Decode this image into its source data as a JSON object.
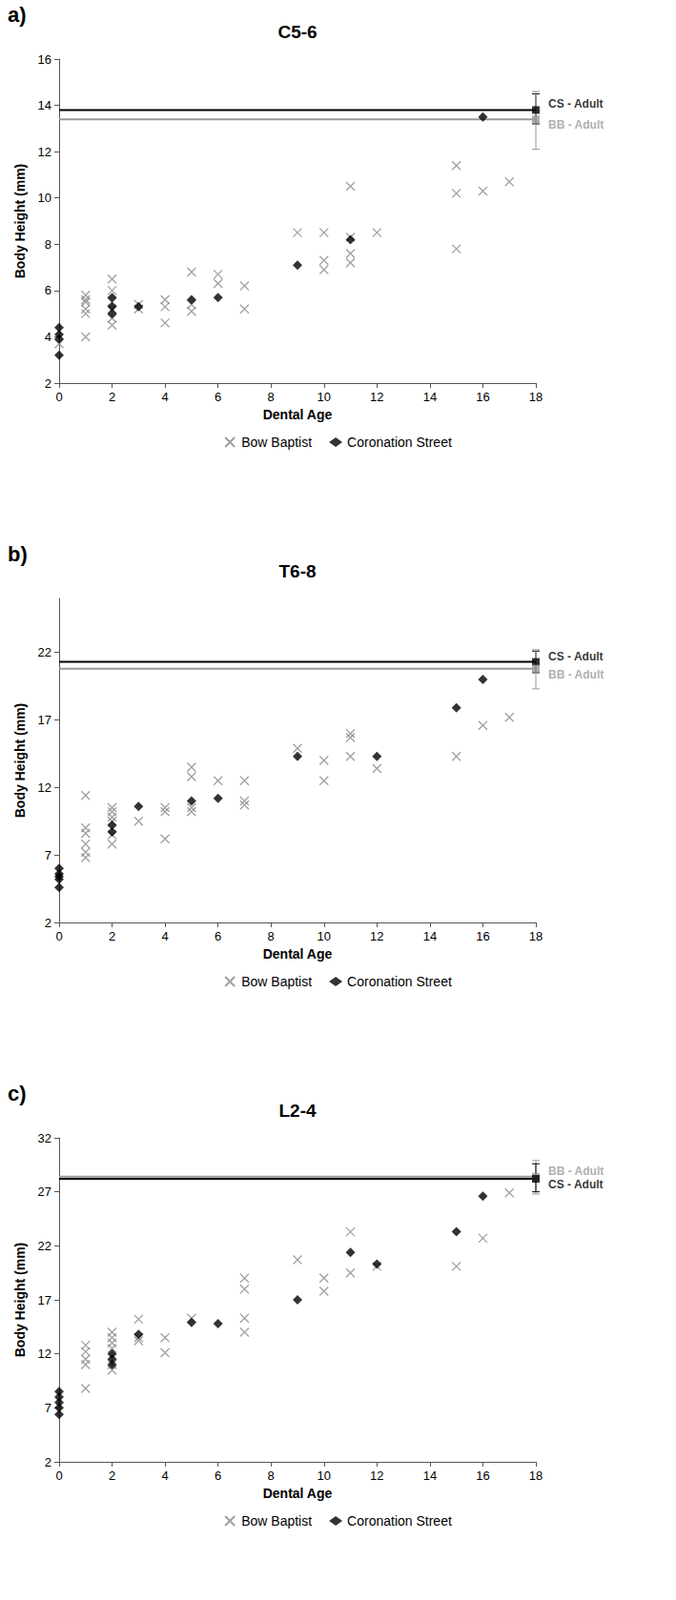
{
  "chart_data": [
    {
      "type": "scatter",
      "panel_label": "a)",
      "title": "C5-6",
      "x_label": "Dental Age",
      "y_label": "Body Height (mm)",
      "xlim": [
        0,
        18
      ],
      "xticks": [
        0,
        2,
        4,
        6,
        8,
        10,
        12,
        14,
        16,
        18
      ],
      "ylim": [
        2,
        16
      ],
      "yticks": [
        2,
        4,
        6,
        8,
        10,
        12,
        14,
        16
      ],
      "grid": false,
      "legend": "bottom",
      "series": [
        {
          "name": "Bow Baptist",
          "color": "#888888",
          "marker": "x",
          "x": [
            0,
            1,
            1,
            1,
            1,
            1,
            1,
            2,
            2,
            2,
            2,
            2,
            2,
            3,
            3,
            4,
            4,
            4,
            5,
            5,
            5,
            6,
            6,
            7,
            7,
            9,
            10,
            10,
            10,
            11,
            11,
            11,
            11,
            12,
            15,
            15,
            15,
            16,
            17
          ],
          "values": [
            3.7,
            5.8,
            5.5,
            5.2,
            5.0,
            4.0,
            5.6,
            6.5,
            6.0,
            5.2,
            4.8,
            4.5,
            5.5,
            5.4,
            5.2,
            5.6,
            5.3,
            4.6,
            6.8,
            5.4,
            5.1,
            6.7,
            6.3,
            6.2,
            5.2,
            8.5,
            8.5,
            7.3,
            6.9,
            10.5,
            8.3,
            7.6,
            7.2,
            8.5,
            11.4,
            10.2,
            7.8,
            10.3,
            10.7
          ]
        },
        {
          "name": "Coronation Street",
          "color": "#000000",
          "marker": "diamond",
          "x": [
            0,
            0,
            0,
            0,
            2,
            2,
            2,
            3,
            5,
            6,
            9,
            11,
            16
          ],
          "values": [
            4.4,
            4.1,
            3.9,
            3.2,
            5.7,
            5.3,
            5.0,
            5.3,
            5.6,
            5.7,
            7.1,
            8.2,
            13.5
          ]
        }
      ],
      "reference_lines": [
        {
          "label": "CS - Adult",
          "value": 13.8,
          "error_low": 13.2,
          "error_high": 14.5,
          "color": "#000000"
        },
        {
          "label": "BB - Adult",
          "value": 13.4,
          "error_low": 12.1,
          "error_high": 14.6,
          "color": "#999999"
        }
      ]
    },
    {
      "type": "scatter",
      "panel_label": "b)",
      "title": "T6-8",
      "x_label": "Dental Age",
      "y_label": "Body Height (mm)",
      "xlim": [
        0,
        18
      ],
      "xticks": [
        0,
        2,
        4,
        6,
        8,
        10,
        12,
        14,
        16,
        18
      ],
      "ylim": [
        2,
        26
      ],
      "yticks": [
        2,
        7,
        12,
        17,
        22
      ],
      "grid": false,
      "legend": "bottom",
      "series": [
        {
          "name": "Bow Baptist",
          "color": "#888888",
          "marker": "x",
          "x": [
            1,
            1,
            1,
            1,
            1,
            1,
            2,
            2,
            2,
            2,
            2,
            2,
            3,
            4,
            4,
            4,
            5,
            5,
            5,
            5,
            6,
            7,
            7,
            7,
            9,
            10,
            10,
            11,
            11,
            11,
            12,
            15,
            16,
            17
          ],
          "values": [
            11.4,
            9.0,
            8.6,
            7.8,
            7.2,
            6.8,
            10.5,
            10.2,
            9.8,
            9.5,
            8.5,
            7.8,
            9.5,
            10.5,
            10.2,
            8.2,
            13.5,
            12.8,
            10.5,
            10.2,
            12.5,
            12.5,
            11.0,
            10.7,
            14.9,
            14.0,
            12.5,
            16.0,
            15.7,
            14.3,
            13.4,
            14.3,
            16.6,
            17.2
          ]
        },
        {
          "name": "Coronation Street",
          "color": "#000000",
          "marker": "diamond",
          "x": [
            0,
            0,
            0,
            0,
            0,
            2,
            2,
            3,
            5,
            6,
            9,
            12,
            15,
            16
          ],
          "values": [
            6.0,
            5.6,
            5.4,
            5.2,
            4.6,
            9.2,
            8.7,
            10.6,
            11.0,
            11.2,
            14.3,
            14.3,
            17.9,
            20.0
          ]
        }
      ],
      "reference_lines": [
        {
          "label": "CS - Adult",
          "value": 21.3,
          "error_low": 20.5,
          "error_high": 22.1,
          "color": "#000000"
        },
        {
          "label": "BB - Adult",
          "value": 20.8,
          "error_low": 19.3,
          "error_high": 22.2,
          "color": "#999999"
        }
      ]
    },
    {
      "type": "scatter",
      "panel_label": "c)",
      "title": "L2-4",
      "x_label": "Dental Age",
      "y_label": "Body Height (mm)",
      "xlim": [
        0,
        18
      ],
      "xticks": [
        0,
        2,
        4,
        6,
        8,
        10,
        12,
        14,
        16,
        18
      ],
      "ylim": [
        2,
        32
      ],
      "yticks": [
        2,
        7,
        12,
        17,
        22,
        27,
        32
      ],
      "grid": false,
      "legend": "bottom",
      "series": [
        {
          "name": "Bow Baptist",
          "color": "#888888",
          "marker": "x",
          "x": [
            1,
            1,
            1,
            1,
            1,
            2,
            2,
            2,
            2,
            2,
            2,
            3,
            3,
            3,
            4,
            4,
            5,
            7,
            7,
            7,
            7,
            9,
            10,
            10,
            11,
            11,
            12,
            15,
            16,
            17
          ],
          "values": [
            12.8,
            12.2,
            11.5,
            11.0,
            8.8,
            14.0,
            13.5,
            13.0,
            12.5,
            11.0,
            10.5,
            15.2,
            13.5,
            13.2,
            13.5,
            12.1,
            15.3,
            19.0,
            18.0,
            15.3,
            14.0,
            20.7,
            19.0,
            17.8,
            23.3,
            19.5,
            20.1,
            20.1,
            22.7,
            26.9
          ]
        },
        {
          "name": "Coronation Street",
          "color": "#000000",
          "marker": "diamond",
          "x": [
            0,
            0,
            0,
            0,
            0,
            2,
            2,
            2,
            3,
            5,
            6,
            9,
            11,
            12,
            15,
            16
          ],
          "values": [
            8.5,
            8.0,
            7.5,
            7.0,
            6.4,
            12.0,
            11.5,
            11.0,
            13.8,
            14.9,
            14.8,
            17.0,
            21.4,
            20.3,
            23.3,
            26.6
          ]
        }
      ],
      "reference_lines": [
        {
          "label": "BB - Adult",
          "value": 28.4,
          "error_low": 26.8,
          "error_high": 29.9,
          "color": "#999999"
        },
        {
          "label": "CS - Adult",
          "value": 28.2,
          "error_low": 27.0,
          "error_high": 29.6,
          "color": "#000000"
        }
      ]
    }
  ]
}
